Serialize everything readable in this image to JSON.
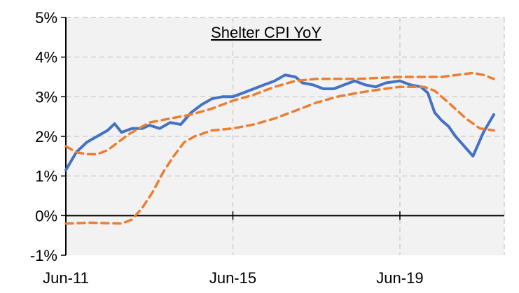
{
  "chart_data": {
    "type": "line",
    "title": "Shelter CPI YoY",
    "xlabel": "",
    "ylabel": "",
    "ylim": [
      -1,
      5
    ],
    "xlim": [
      "2011-06",
      "2021-12"
    ],
    "y_ticks": [
      "-1%",
      "0%",
      "1%",
      "2%",
      "3%",
      "4%",
      "5%"
    ],
    "y_tick_values": [
      -1,
      0,
      1,
      2,
      3,
      4,
      5
    ],
    "x_ticks": [
      "Jun-11",
      "Jun-15",
      "Jun-19"
    ],
    "x_tick_values": [
      "2011-06",
      "2015-06",
      "2019-06"
    ],
    "grid": true,
    "legend": "none",
    "colors": {
      "plot_background": "#f2f2f2",
      "grid": "#d0d0d0",
      "axis": "#000000",
      "blue": "#4472c4",
      "orange": "#ed7d31"
    },
    "series": [
      {
        "style": "solid",
        "color": "#4472c4",
        "points": [
          [
            "2011-06",
            1.15
          ],
          [
            "2011-09",
            1.6
          ],
          [
            "2011-12",
            1.85
          ],
          [
            "2012-03",
            2.0
          ],
          [
            "2012-06",
            2.15
          ],
          [
            "2012-08",
            2.32
          ],
          [
            "2012-10",
            2.1
          ],
          [
            "2013-01",
            2.2
          ],
          [
            "2013-04",
            2.2
          ],
          [
            "2013-06",
            2.28
          ],
          [
            "2013-09",
            2.2
          ],
          [
            "2013-12",
            2.35
          ],
          [
            "2014-03",
            2.3
          ],
          [
            "2014-06",
            2.6
          ],
          [
            "2014-09",
            2.8
          ],
          [
            "2014-12",
            2.95
          ],
          [
            "2015-03",
            3.0
          ],
          [
            "2015-06",
            3.0
          ],
          [
            "2015-09",
            3.1
          ],
          [
            "2015-12",
            3.2
          ],
          [
            "2016-03",
            3.3
          ],
          [
            "2016-06",
            3.4
          ],
          [
            "2016-09",
            3.55
          ],
          [
            "2016-12",
            3.5
          ],
          [
            "2017-02",
            3.35
          ],
          [
            "2017-05",
            3.3
          ],
          [
            "2017-08",
            3.2
          ],
          [
            "2017-11",
            3.2
          ],
          [
            "2018-02",
            3.3
          ],
          [
            "2018-05",
            3.4
          ],
          [
            "2018-08",
            3.3
          ],
          [
            "2018-11",
            3.25
          ],
          [
            "2019-02",
            3.35
          ],
          [
            "2019-06",
            3.4
          ],
          [
            "2019-09",
            3.3
          ],
          [
            "2019-12",
            3.25
          ],
          [
            "2020-02",
            3.1
          ],
          [
            "2020-04",
            2.6
          ],
          [
            "2020-06",
            2.4
          ],
          [
            "2020-08",
            2.25
          ],
          [
            "2020-10",
            2.0
          ],
          [
            "2020-12",
            1.8
          ],
          [
            "2021-03",
            1.5
          ],
          [
            "2021-06",
            2.1
          ],
          [
            "2021-09",
            2.55
          ]
        ]
      },
      {
        "style": "dashed",
        "color": "#ed7d31",
        "points": [
          [
            "2011-06",
            1.75
          ],
          [
            "2011-09",
            1.6
          ],
          [
            "2011-12",
            1.55
          ],
          [
            "2012-03",
            1.55
          ],
          [
            "2012-06",
            1.65
          ],
          [
            "2012-09",
            1.85
          ],
          [
            "2012-12",
            2.05
          ],
          [
            "2013-03",
            2.2
          ],
          [
            "2013-06",
            2.35
          ],
          [
            "2013-12",
            2.45
          ],
          [
            "2014-06",
            2.55
          ],
          [
            "2014-12",
            2.7
          ],
          [
            "2015-06",
            2.9
          ],
          [
            "2015-12",
            3.05
          ],
          [
            "2016-06",
            3.25
          ],
          [
            "2016-12",
            3.4
          ],
          [
            "2017-06",
            3.45
          ],
          [
            "2018-06",
            3.45
          ],
          [
            "2019-06",
            3.5
          ],
          [
            "2020-06",
            3.5
          ],
          [
            "2021-03",
            3.6
          ],
          [
            "2021-06",
            3.55
          ],
          [
            "2021-09",
            3.45
          ]
        ]
      },
      {
        "style": "dashed",
        "color": "#ed7d31",
        "points": [
          [
            "2011-06",
            -0.2
          ],
          [
            "2012-01",
            -0.18
          ],
          [
            "2012-10",
            -0.2
          ],
          [
            "2013-01",
            -0.1
          ],
          [
            "2013-04",
            0.2
          ],
          [
            "2013-07",
            0.6
          ],
          [
            "2013-10",
            1.1
          ],
          [
            "2014-01",
            1.5
          ],
          [
            "2014-04",
            1.85
          ],
          [
            "2014-07",
            2.0
          ],
          [
            "2014-12",
            2.15
          ],
          [
            "2015-06",
            2.2
          ],
          [
            "2015-12",
            2.3
          ],
          [
            "2016-06",
            2.45
          ],
          [
            "2016-12",
            2.65
          ],
          [
            "2017-06",
            2.85
          ],
          [
            "2017-12",
            3.0
          ],
          [
            "2018-06",
            3.1
          ],
          [
            "2018-12",
            3.18
          ],
          [
            "2019-06",
            3.25
          ],
          [
            "2020-01",
            3.25
          ],
          [
            "2020-04",
            3.15
          ],
          [
            "2020-08",
            2.85
          ],
          [
            "2021-01",
            2.45
          ],
          [
            "2021-05",
            2.2
          ],
          [
            "2021-09",
            2.15
          ]
        ]
      }
    ]
  }
}
